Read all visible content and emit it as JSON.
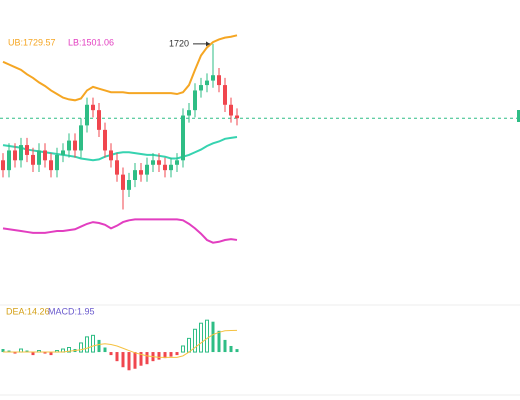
{
  "chart_data": {
    "type": "candlestick",
    "ylim": [
      1434,
      1769
    ],
    "open": [
      1590,
      1579,
      1601,
      1590,
      1607,
      1596,
      1585,
      1601,
      1590,
      1579,
      1596,
      1601,
      1612,
      1601,
      1629,
      1652,
      1646,
      1624,
      1601,
      1590,
      1574,
      1557,
      1568,
      1579,
      1574,
      1585,
      1590,
      1585,
      1579,
      1585,
      1590,
      1640,
      1646,
      1668,
      1674,
      1679,
      1685,
      1674,
      1652,
      1640
    ],
    "close": [
      1579,
      1601,
      1590,
      1607,
      1596,
      1585,
      1601,
      1590,
      1579,
      1596,
      1601,
      1612,
      1601,
      1629,
      1652,
      1646,
      1624,
      1601,
      1590,
      1574,
      1557,
      1568,
      1579,
      1574,
      1585,
      1590,
      1585,
      1579,
      1585,
      1590,
      1640,
      1646,
      1668,
      1674,
      1679,
      1685,
      1674,
      1652,
      1640,
      1637
    ],
    "high": [
      1598,
      1609,
      1609,
      1615,
      1615,
      1604,
      1609,
      1609,
      1598,
      1604,
      1609,
      1620,
      1620,
      1637,
      1660,
      1660,
      1654,
      1632,
      1609,
      1598,
      1582,
      1576,
      1587,
      1587,
      1593,
      1598,
      1598,
      1593,
      1593,
      1598,
      1648,
      1654,
      1676,
      1682,
      1687,
      1720,
      1693,
      1682,
      1660,
      1648
    ],
    "low": [
      1571,
      1571,
      1582,
      1582,
      1588,
      1577,
      1577,
      1582,
      1571,
      1571,
      1588,
      1593,
      1593,
      1593,
      1621,
      1638,
      1616,
      1593,
      1582,
      1566,
      1535,
      1549,
      1560,
      1566,
      1566,
      1577,
      1577,
      1571,
      1571,
      1577,
      1582,
      1632,
      1638,
      1660,
      1666,
      1671,
      1666,
      1644,
      1632,
      1629
    ],
    "upper": [
      1700,
      1697,
      1694,
      1691,
      1686,
      1682,
      1677,
      1673,
      1668,
      1664,
      1660,
      1658,
      1657,
      1659,
      1668,
      1672,
      1670,
      1668,
      1666,
      1666,
      1666,
      1665,
      1665,
      1665,
      1665,
      1665,
      1665,
      1665,
      1665,
      1664,
      1666,
      1674,
      1691,
      1707,
      1716,
      1722,
      1725,
      1727,
      1728,
      1729.57
    ],
    "middle": [
      1607,
      1606,
      1605,
      1604,
      1602,
      1601,
      1600,
      1599,
      1598,
      1597,
      1596,
      1595,
      1594,
      1592,
      1591,
      1590,
      1591,
      1594,
      1596,
      1598,
      1599,
      1599,
      1598,
      1597,
      1596,
      1596,
      1595,
      1594,
      1592,
      1592,
      1594,
      1596,
      1599,
      1602,
      1606,
      1609,
      1611,
      1614,
      1615,
      1616
    ],
    "lower": [
      1514,
      1513,
      1512,
      1511,
      1510,
      1509,
      1509,
      1509,
      1510,
      1511,
      1511,
      1512,
      1513,
      1516,
      1519,
      1521,
      1520,
      1518,
      1514,
      1517,
      1521,
      1523,
      1524,
      1524,
      1524,
      1524,
      1524,
      1524,
      1524,
      1524,
      1523,
      1519,
      1514,
      1508,
      1501,
      1498,
      1499,
      1501,
      1502,
      1501.06
    ],
    "ub_label": "UB:1729.57",
    "lb_label": "LB:1501.06",
    "annotation": {
      "text": "1720",
      "index": 35,
      "value": 1720
    },
    "up_color": "#2ebd85",
    "down_color": "#f0464e",
    "upper_color": "#f5a623",
    "middle_color": "#36d3b0",
    "lower_color": "#e23ec0",
    "macd": {
      "ylim": [
        -25,
        31
      ],
      "hist": [
        2,
        1,
        -1,
        2,
        1,
        -2,
        1,
        -1,
        -2,
        1,
        2,
        3,
        2,
        6,
        10,
        11,
        8,
        3,
        -2,
        -6,
        -10,
        -12,
        -11,
        -9,
        -8,
        -6,
        -5,
        -4,
        -3,
        -2,
        4,
        9,
        15,
        19,
        21,
        20,
        14,
        8,
        4,
        1.95
      ],
      "dea": [
        0,
        0,
        0,
        0,
        0,
        0,
        0,
        0,
        0,
        0,
        0,
        0.5,
        1,
        1.5,
        2.5,
        4,
        5,
        5.5,
        5,
        4,
        2.5,
        1,
        -0.5,
        -1.5,
        -2.5,
        -3,
        -3.5,
        -3.5,
        -3.5,
        -3.5,
        -2.5,
        0,
        3,
        6,
        9,
        11.5,
        13,
        14,
        14.2,
        14.26
      ],
      "dea_label": "DEA:14.26",
      "macd_label": "MACD:1.95",
      "dea_color": "#f5c242",
      "macd_label_color": "#6a5acd"
    }
  }
}
